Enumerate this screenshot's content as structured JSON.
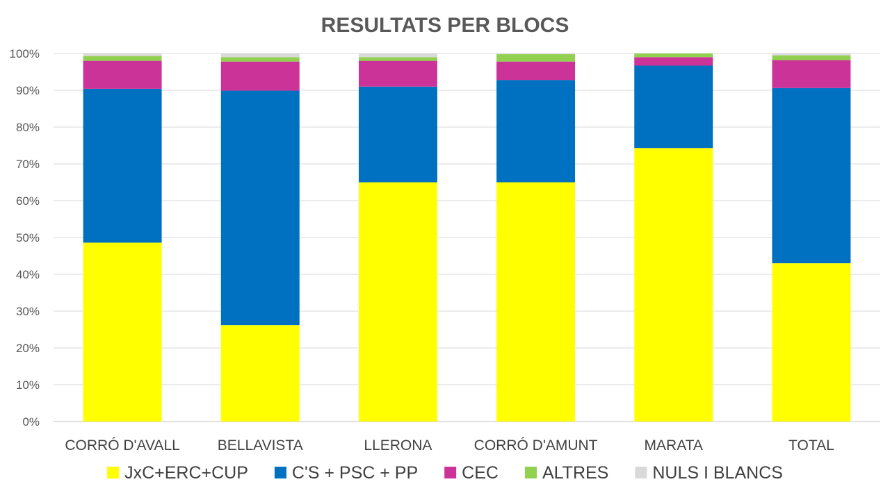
{
  "chart_data": {
    "type": "bar",
    "stacked": true,
    "normalized": true,
    "title": "RESULTATS PER BLOCS",
    "categories": [
      "CORRÓ D'AVALL",
      "BELLAVISTA",
      "LLERONA",
      "CORRÓ D'AMUNT",
      "MARATA",
      "TOTAL"
    ],
    "series": [
      {
        "name": "JxC+ERC+CUP",
        "color": "#ffff00",
        "values": [
          48.6,
          26.2,
          65.0,
          65.0,
          74.3,
          43.0
        ]
      },
      {
        "name": "C'S + PSC + PP",
        "color": "#0070c0",
        "values": [
          41.8,
          63.7,
          26.0,
          27.8,
          22.4,
          47.6
        ]
      },
      {
        "name": "CEC",
        "color": "#cc3399",
        "values": [
          7.6,
          7.9,
          7.0,
          5.0,
          2.3,
          7.6
        ]
      },
      {
        "name": "ALTRES",
        "color": "#92d050",
        "values": [
          1.3,
          1.2,
          1.0,
          2.0,
          1.0,
          1.3
        ]
      },
      {
        "name": "NULS I BLANCS",
        "color": "#d9d9d9",
        "values": [
          0.7,
          1.0,
          1.0,
          0.2,
          0.0,
          0.5
        ]
      }
    ],
    "y_ticks": [
      "0%",
      "10%",
      "20%",
      "30%",
      "40%",
      "50%",
      "60%",
      "70%",
      "80%",
      "90%",
      "100%"
    ],
    "ylim": [
      0,
      100
    ],
    "grid": true,
    "legend_position": "bottom"
  }
}
